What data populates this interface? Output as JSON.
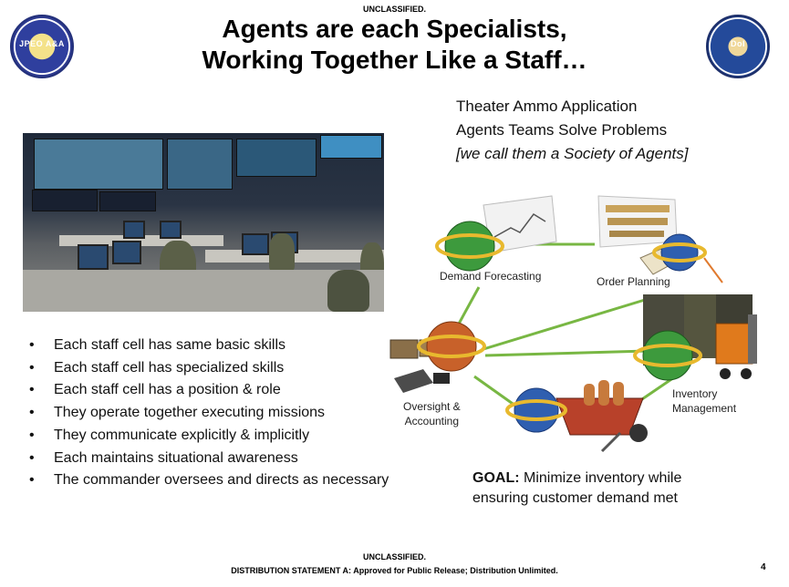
{
  "classification_top": "UNCLASSIFIED.",
  "title_line1": "Agents are each Specialists,",
  "title_line2": "Working Together Like a Staff…",
  "logo_left": {
    "icon": "jpeo-armaments-ammunition-seal-icon",
    "text": "JPEO A&A"
  },
  "logo_right": {
    "icon": "jpeo-aa-directorate-seal-icon",
    "text": "DoI"
  },
  "photo": {
    "icon": "control-room-photo"
  },
  "subtitle": {
    "line1": "Theater Ammo Application",
    "line2": "Agents Teams Solve Problems",
    "line3": "[we call them a Society of Agents]"
  },
  "bullets": [
    "Each staff cell has same basic skills",
    "Each staff cell has specialized skills",
    "Each staff cell has a position & role",
    "They operate together executing missions",
    "They communicate explicitly & implicitly",
    "Each maintains situational awareness",
    "The commander oversees and directs as necessary"
  ],
  "diagram": {
    "agents": {
      "demand": "Demand Forecasting",
      "order": "Order Planning",
      "oversight_line1": "Oversight &",
      "oversight_line2": "Accounting",
      "inventory_line1": "Inventory",
      "inventory_line2": "Management"
    },
    "colors": {
      "link": "#78b743",
      "orange_link": "#e07a2e",
      "green_globe": "#3d9a3d",
      "blue_globe": "#2f5fb0",
      "orange_globe": "#c8612a",
      "ring": "#e8b92e"
    }
  },
  "goal": {
    "label": "GOAL:",
    "text1": " Minimize inventory while",
    "text2": "ensuring customer demand met"
  },
  "footer": {
    "classification": "UNCLASSIFIED.",
    "distribution": "DISTRIBUTION STATEMENT A: Approved for Public Release; Distribution Unlimited."
  },
  "page_number": "4"
}
